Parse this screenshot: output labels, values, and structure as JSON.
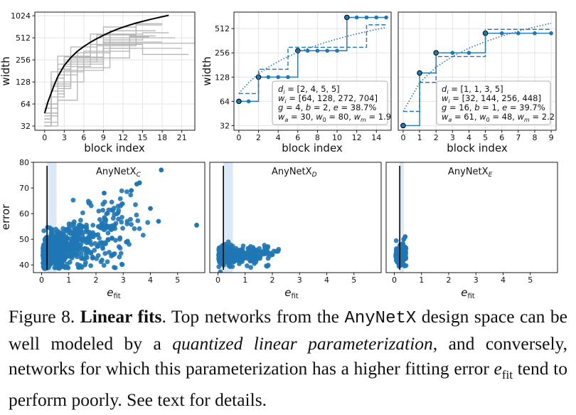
{
  "caption": {
    "figure_label": "Figure 8.",
    "bold_title": "Linear fits",
    "t1": ". Top networks from the ",
    "code": "AnyNetX",
    "t2": " design space can be well modeled by a ",
    "italic": "quantized linear parameterization",
    "t3": ", and conversely, networks for which this parameterization has a higher fitting error ",
    "efit_e": "e",
    "efit_sub": "fit",
    "t4": " tend to perform poorly. See text for details."
  },
  "colors": {
    "accent": "#1f77b4",
    "gray": "#b5b5b5",
    "black": "#000000",
    "band": "#cfe3f3"
  },
  "chart_data": [
    {
      "id": "width-all",
      "type": "line",
      "xlabel": "block index",
      "ylabel": "width",
      "xlim": [
        -1.5,
        23
      ],
      "ylim": [
        28,
        1150
      ],
      "yscale": "log2",
      "xticks": [
        0,
        3,
        6,
        9,
        12,
        15,
        18,
        21
      ],
      "yticks": [
        32,
        64,
        128,
        256,
        512,
        1024
      ],
      "series": [
        {
          "name": "fit",
          "color": "#000000",
          "x": [
            0,
            0.5,
            1,
            1.5,
            2,
            3,
            4,
            5,
            6,
            7,
            8,
            9,
            10,
            11,
            12,
            13,
            14,
            15,
            16,
            17,
            18,
            19
          ],
          "y": [
            48,
            68,
            90,
            118,
            150,
            215,
            275,
            335,
            390,
            445,
            500,
            555,
            610,
            665,
            715,
            765,
            815,
            860,
            905,
            950,
            995,
            1040
          ]
        },
        {
          "name": "net1",
          "color": "#b5b5b5",
          "x": [
            0,
            1,
            2,
            3,
            4,
            6,
            8,
            10,
            14,
            18
          ],
          "y": [
            48,
            128,
            192,
            192,
            384,
            384,
            560,
            560,
            768,
            768
          ]
        },
        {
          "name": "net2",
          "color": "#b5b5b5",
          "x": [
            0,
            2,
            3,
            5,
            7,
            9,
            12,
            16,
            20,
            23
          ],
          "y": [
            48,
            96,
            256,
            256,
            256,
            432,
            432,
            432,
            432,
            432
          ]
        },
        {
          "name": "net3",
          "color": "#b5b5b5",
          "x": [
            0,
            1,
            2,
            4,
            5,
            8,
            10,
            14,
            17
          ],
          "y": [
            32,
            64,
            160,
            160,
            320,
            320,
            640,
            640,
            640
          ]
        },
        {
          "name": "net4",
          "color": "#b5b5b5",
          "x": [
            0,
            1,
            3,
            4,
            6,
            9,
            11,
            15,
            19
          ],
          "y": [
            40,
            112,
            112,
            240,
            240,
            480,
            480,
            600,
            600
          ]
        },
        {
          "name": "net5",
          "color": "#b5b5b5",
          "x": [
            0,
            2,
            4,
            5,
            8,
            10,
            13,
            17,
            21
          ],
          "y": [
            56,
            72,
            72,
            200,
            200,
            368,
            368,
            368,
            368
          ]
        },
        {
          "name": "net6",
          "color": "#b5b5b5",
          "x": [
            0,
            1,
            2,
            3,
            5,
            7,
            9,
            11,
            14
          ],
          "y": [
            32,
            48,
            144,
            280,
            280,
            280,
            720,
            720,
            720
          ]
        },
        {
          "name": "net7",
          "color": "#b5b5b5",
          "x": [
            0,
            1,
            3,
            5,
            6,
            8,
            11,
            13,
            16
          ],
          "y": [
            64,
            176,
            176,
            176,
            336,
            336,
            336,
            528,
            528
          ]
        },
        {
          "name": "net8",
          "color": "#b5b5b5",
          "x": [
            0,
            2,
            3,
            5,
            7,
            10,
            12,
            15,
            19,
            22
          ],
          "y": [
            36,
            88,
            208,
            208,
            416,
            416,
            416,
            304,
            304,
            304
          ]
        },
        {
          "name": "net9",
          "color": "#b5b5b5",
          "x": [
            0,
            1,
            2,
            4,
            7,
            9,
            12,
            18
          ],
          "y": [
            48,
            80,
            224,
            224,
            224,
            448,
            448,
            448
          ]
        },
        {
          "name": "net10",
          "color": "#b5b5b5",
          "x": [
            0,
            1,
            2,
            3,
            6,
            8,
            12,
            16,
            20
          ],
          "y": [
            32,
            56,
            120,
            240,
            240,
            512,
            512,
            512,
            512
          ]
        },
        {
          "name": "net11",
          "color": "#b5b5b5",
          "x": [
            0,
            2,
            3,
            4,
            6,
            9,
            13,
            17
          ],
          "y": [
            44,
            104,
            104,
            272,
            272,
            272,
            544,
            544
          ]
        },
        {
          "name": "net12",
          "color": "#b5b5b5",
          "x": [
            0,
            1,
            2,
            5,
            7,
            10,
            15
          ],
          "y": [
            40,
            96,
            288,
            288,
            576,
            576,
            576
          ]
        },
        {
          "name": "net13",
          "color": "#b5b5b5",
          "x": [
            0,
            1,
            3,
            4,
            7,
            8,
            11,
            14,
            18
          ],
          "y": [
            56,
            120,
            120,
            256,
            256,
            400,
            400,
            800,
            800
          ]
        },
        {
          "name": "net14",
          "color": "#b5b5b5",
          "x": [
            0,
            2,
            3,
            6,
            9,
            11,
            14
          ],
          "y": [
            32,
            80,
            184,
            184,
            368,
            368,
            368
          ]
        },
        {
          "name": "net15",
          "color": "#b5b5b5",
          "x": [
            0,
            1,
            2,
            4,
            6,
            8,
            10,
            13
          ],
          "y": [
            36,
            64,
            128,
            128,
            320,
            320,
            640,
            640
          ]
        }
      ]
    },
    {
      "id": "width-example-1",
      "type": "line",
      "xlabel": "block index",
      "ylabel": "width",
      "xlim": [
        -0.5,
        15.5
      ],
      "ylim": [
        28,
        820
      ],
      "yscale": "log2",
      "xticks": [
        0,
        2,
        4,
        6,
        8,
        10,
        12,
        14
      ],
      "yticks": [
        32,
        64,
        128,
        256,
        512
      ],
      "legend_text": [
        "d_i = [2, 4, 5, 5]",
        "w_i = [64, 128, 272, 704]",
        "g = 4, b = 2, e = 38.7%",
        "w_a = 30, w_0 = 80, w_m = 1.9"
      ],
      "series": [
        {
          "name": "actual",
          "style": "solid-markers",
          "color": "#1f77b4",
          "x": [
            0,
            1,
            2,
            3,
            4,
            5,
            6,
            7,
            8,
            9,
            10,
            11,
            12,
            13,
            14,
            15
          ],
          "y": [
            64,
            64,
            128,
            128,
            128,
            128,
            272,
            272,
            272,
            272,
            272,
            704,
            704,
            704,
            704,
            704
          ]
        },
        {
          "name": "quantized",
          "style": "dashed",
          "color": "#1f77b4",
          "x": [
            0,
            1,
            2,
            3,
            4,
            5,
            6,
            7,
            8,
            9,
            10,
            11,
            12,
            13,
            14,
            15
          ],
          "y": [
            80,
            80,
            160,
            160,
            160,
            300,
            300,
            300,
            300,
            300,
            300,
            300,
            300,
            570,
            570,
            570
          ]
        },
        {
          "name": "linear",
          "style": "dotted",
          "color": "#1f77b4",
          "x": [
            0,
            1,
            2,
            3,
            4,
            5,
            6,
            7,
            8,
            9,
            10,
            11,
            12,
            13,
            14,
            15
          ],
          "y": [
            80,
            110,
            140,
            170,
            200,
            230,
            260,
            290,
            320,
            350,
            380,
            410,
            440,
            470,
            500,
            530
          ]
        }
      ],
      "marker_outlined_x": [
        0,
        2,
        6,
        11
      ]
    },
    {
      "id": "width-example-2",
      "type": "line",
      "xlabel": "block index",
      "ylabel": "",
      "xlim": [
        -0.3,
        9.3
      ],
      "ylim": [
        28,
        820
      ],
      "yscale": "log2",
      "xticks": [
        0,
        1,
        2,
        3,
        4,
        5,
        6,
        7,
        8,
        9
      ],
      "yticks": [],
      "legend_text": [
        "d_i = [1, 1, 3, 5]",
        "w_i = [32, 144, 256, 448]",
        "g = 16, b = 1, e = 39.7%",
        "w_a = 61, w_0 = 48, w_m = 2.2"
      ],
      "series": [
        {
          "name": "actual",
          "style": "solid-markers",
          "color": "#1f77b4",
          "x": [
            0,
            1,
            2,
            3,
            4,
            5,
            6,
            7,
            8,
            9
          ],
          "y": [
            32,
            144,
            256,
            256,
            256,
            448,
            448,
            448,
            448,
            448
          ]
        },
        {
          "name": "quantized",
          "style": "dashed",
          "color": "#1f77b4",
          "x": [
            0,
            1,
            2,
            3,
            4,
            5,
            6,
            7,
            8,
            9
          ],
          "y": [
            48,
            110,
            230,
            230,
            230,
            500,
            500,
            500,
            500,
            500
          ]
        },
        {
          "name": "linear",
          "style": "dotted",
          "color": "#1f77b4",
          "x": [
            0,
            1,
            2,
            3,
            4,
            5,
            6,
            7,
            8,
            9
          ],
          "y": [
            48,
            109,
            170,
            231,
            292,
            353,
            414,
            475,
            536,
            597
          ]
        }
      ],
      "marker_outlined_x": [
        0,
        1,
        2,
        5
      ]
    },
    {
      "id": "error-C",
      "type": "scatter",
      "title_main": "AnyNetX",
      "title_sub": "C",
      "xlabel_main": "e",
      "xlabel_sub": "fit",
      "ylabel": "error",
      "xlim": [
        -0.3,
        6
      ],
      "ylim": [
        37,
        80
      ],
      "xticks": [
        0,
        1,
        2,
        3,
        4,
        5
      ],
      "yticks": [
        40,
        50,
        60,
        70,
        80
      ],
      "threshold": 0.2,
      "band": [
        0.2,
        0.55
      ],
      "n_points": 700,
      "seed": 11,
      "spread": "wide",
      "outliers": [
        [
          4.4,
          77
        ],
        [
          3.6,
          72
        ],
        [
          3.5,
          71.5
        ],
        [
          5.7,
          55.5
        ],
        [
          4.3,
          57
        ],
        [
          4.0,
          62
        ],
        [
          3.3,
          69
        ],
        [
          2.3,
          68
        ]
      ]
    },
    {
      "id": "error-D",
      "type": "scatter",
      "title_main": "AnyNetX",
      "title_sub": "D",
      "xlabel_main": "e",
      "xlabel_sub": "fit",
      "ylabel": "",
      "xlim": [
        -0.3,
        6
      ],
      "ylim": [
        37,
        80
      ],
      "xticks": [
        0,
        1,
        2,
        3,
        4,
        5
      ],
      "yticks": [],
      "threshold": 0.2,
      "band": [
        0.2,
        0.55
      ],
      "n_points": 350,
      "seed": 23,
      "spread": "medium",
      "outliers": [
        [
          2.15,
          45.3
        ],
        [
          2.0,
          44
        ],
        [
          1.6,
          45
        ]
      ]
    },
    {
      "id": "error-E",
      "type": "scatter",
      "title_main": "AnyNetX",
      "title_sub": "E",
      "xlabel_main": "e",
      "xlabel_sub": "fit",
      "ylabel": "",
      "xlim": [
        -0.3,
        6
      ],
      "ylim": [
        37,
        80
      ],
      "xticks": [
        0,
        1,
        2,
        3,
        4,
        5
      ],
      "yticks": [],
      "threshold": 0.2,
      "band": [
        0.2,
        0.35
      ],
      "n_points": 220,
      "seed": 37,
      "spread": "narrow",
      "outliers": [
        [
          0.4,
          51
        ],
        [
          0.35,
          50
        ]
      ]
    }
  ]
}
